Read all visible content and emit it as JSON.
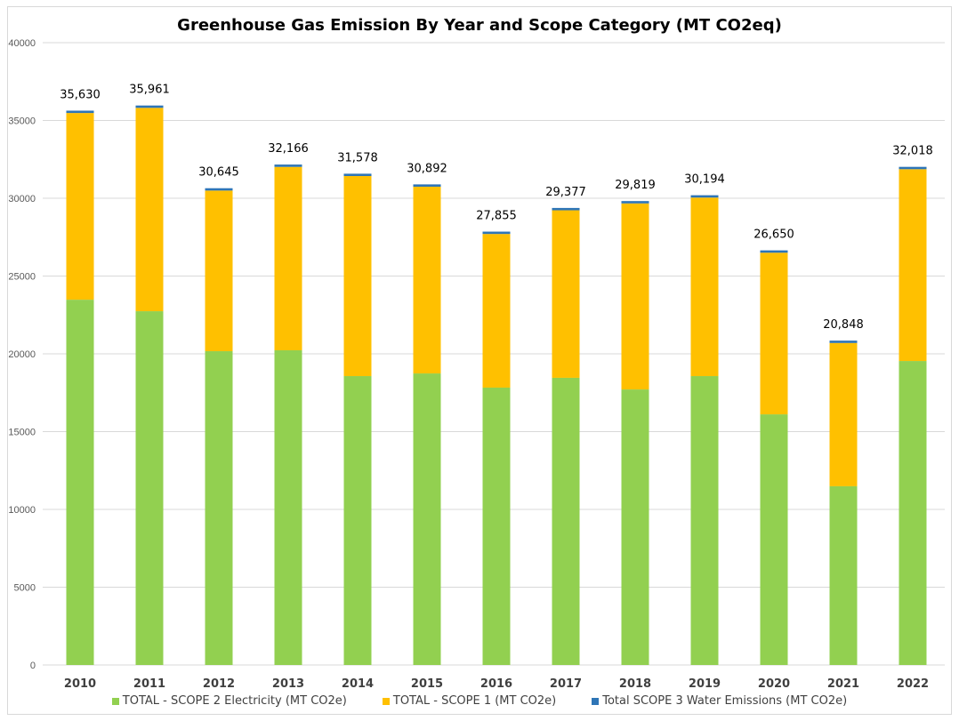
{
  "chart_data": {
    "type": "bar",
    "stacked": true,
    "title": "Greenhouse Gas Emission By Year and Scope Category (MT CO2eq)",
    "xlabel": "",
    "ylabel": "",
    "ylim": [
      0,
      40000
    ],
    "yticks": [
      0,
      5000,
      10000,
      15000,
      20000,
      25000,
      30000,
      35000,
      40000
    ],
    "grid": true,
    "legend_position": "bottom",
    "categories": [
      "2010",
      "2011",
      "2012",
      "2013",
      "2014",
      "2015",
      "2016",
      "2017",
      "2018",
      "2019",
      "2020",
      "2021",
      "2022"
    ],
    "series": [
      {
        "name": "TOTAL - SCOPE 2 Electricity (MT CO2e)",
        "color": "#92d050",
        "values": [
          23480,
          22740,
          20170,
          20230,
          18570,
          18740,
          17830,
          18460,
          17710,
          18570,
          16110,
          11490,
          19540
        ]
      },
      {
        "name": "TOTAL - SCOPE 1 (MT CO2e)",
        "color": "#ffc000",
        "values": [
          12000,
          13071,
          10325,
          11786,
          12858,
          12002,
          9875,
          10767,
          11959,
          11474,
          10390,
          9208,
          12328
        ]
      },
      {
        "name": "Total SCOPE 3 Water Emissions (MT CO2e)",
        "color": "#2e75b6",
        "values": [
          150,
          150,
          150,
          150,
          150,
          150,
          150,
          150,
          150,
          150,
          150,
          150,
          150
        ]
      }
    ],
    "totals": [
      35630,
      35961,
      30645,
      32166,
      31578,
      30892,
      27855,
      29377,
      29819,
      30194,
      26650,
      20848,
      32018
    ],
    "total_labels": [
      "35,630",
      "35,961",
      "30,645",
      "32,166",
      "31,578",
      "30,892",
      "27,855",
      "29,377",
      "29,819",
      "30,194",
      "26,650",
      "20,848",
      "32,018"
    ]
  }
}
